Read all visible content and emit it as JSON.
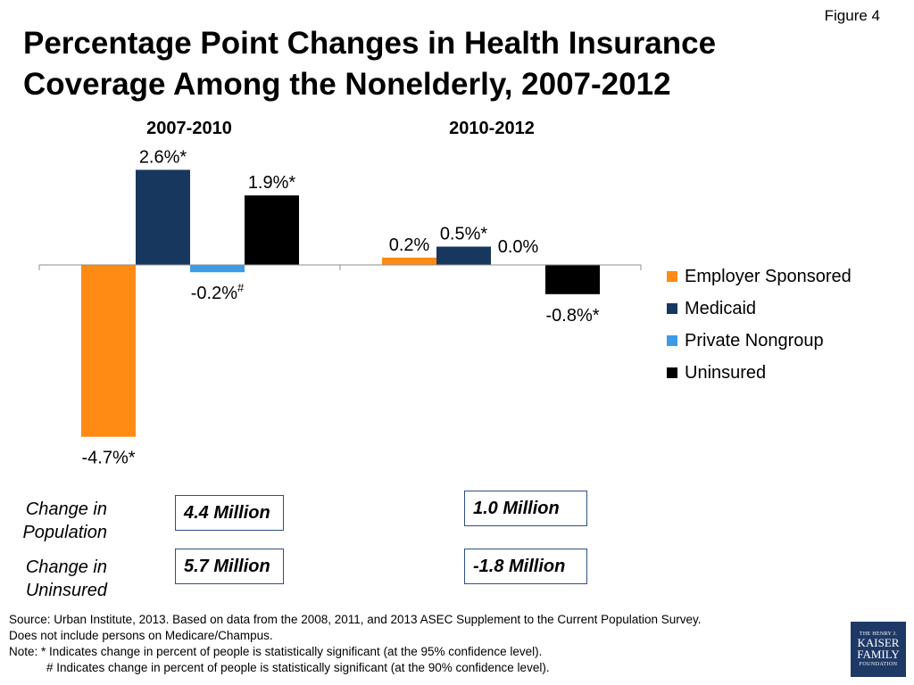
{
  "figure_label": "Figure 4",
  "chart_data": {
    "type": "bar",
    "title": "Percentage Point Changes in Health Insurance Coverage Among the Nonelderly, 2007-2012",
    "categories": [
      "2007-2010",
      "2010-2012"
    ],
    "unit": "percentage points",
    "series": [
      {
        "name": "Employer Sponsored",
        "color": "#ff8a14",
        "values": [
          -4.7,
          0.2
        ],
        "labels": [
          "-4.7%*",
          "0.2%"
        ]
      },
      {
        "name": "Medicaid",
        "color": "#17375e",
        "values": [
          2.6,
          0.5
        ],
        "labels": [
          "2.6%*",
          "0.5%*"
        ]
      },
      {
        "name": "Private Nongroup",
        "color": "#3d9be6",
        "values": [
          -0.2,
          0.0
        ],
        "labels": [
          "-0.2%#",
          "0.0%"
        ]
      },
      {
        "name": "Uninsured",
        "color": "#000000",
        "values": [
          1.9,
          -0.8
        ],
        "labels": [
          "1.9%*",
          "-0.8%*"
        ]
      }
    ],
    "legend_position": "right",
    "grid": false
  },
  "rows": [
    {
      "label": "Change in Population",
      "values": [
        "4.4 Million",
        "1.0 Million"
      ]
    },
    {
      "label": "Change in Uninsured",
      "values": [
        "5.7 Million",
        "-1.8 Million"
      ]
    }
  ],
  "footnotes": [
    "Source: Urban Institute, 2013. Based on data from the 2008, 2011, and 2013 ASEC Supplement to the Current Population Survey.",
    "Does not include persons on Medicare/Champus.",
    "Note: * Indicates change in percent of people is statistically significant (at the 95% confidence level).",
    "# Indicates change in percent of people is statistically significant (at the 90% confidence level)."
  ],
  "logo": {
    "line1": "THE HENRY J.",
    "line2": "KAISER",
    "line3": "FAMILY",
    "line4": "FOUNDATION"
  }
}
